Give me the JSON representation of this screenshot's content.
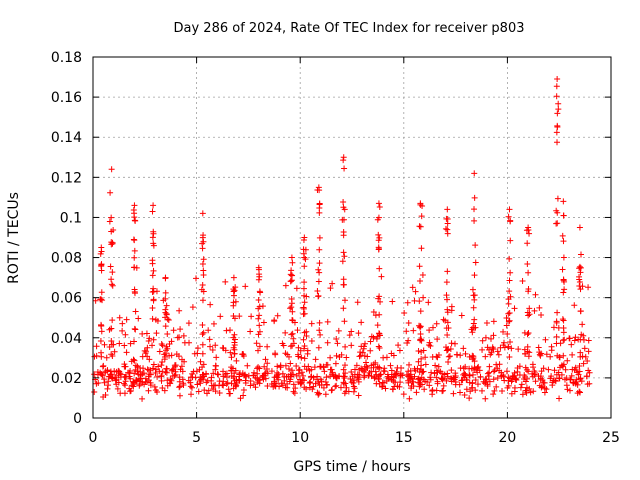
{
  "chart_data": {
    "type": "scatter",
    "title": "Day 286 of 2024, Rate Of TEC Index for receiver p803",
    "xlabel": "GPS time / hours",
    "ylabel": "ROTI / TECUs",
    "xlim": [
      0,
      25
    ],
    "ylim": [
      0,
      0.18
    ],
    "xticks": [
      "0",
      "5",
      "10",
      "15",
      "20",
      "25"
    ],
    "yticks": [
      "0",
      "0.02",
      "0.04",
      "0.06",
      "0.08",
      "0.1",
      "0.12",
      "0.14",
      "0.16",
      "0.18"
    ],
    "grid": true,
    "marker": "+",
    "color": "#ff0000",
    "series": [
      {
        "name": "ROTI",
        "x_range": [
          0,
          24
        ],
        "baseline_band": [
          0.01,
          0.03
        ],
        "spikes": [
          {
            "x": 0.4,
            "y": 0.085
          },
          {
            "x": 0.9,
            "y": 0.124
          },
          {
            "x": 2.0,
            "y": 0.106
          },
          {
            "x": 2.9,
            "y": 0.106
          },
          {
            "x": 3.5,
            "y": 0.07
          },
          {
            "x": 5.3,
            "y": 0.102
          },
          {
            "x": 6.8,
            "y": 0.07
          },
          {
            "x": 8.0,
            "y": 0.075
          },
          {
            "x": 9.6,
            "y": 0.08
          },
          {
            "x": 10.2,
            "y": 0.09
          },
          {
            "x": 10.9,
            "y": 0.115
          },
          {
            "x": 12.1,
            "y": 0.13
          },
          {
            "x": 13.8,
            "y": 0.107
          },
          {
            "x": 15.8,
            "y": 0.107
          },
          {
            "x": 17.1,
            "y": 0.104
          },
          {
            "x": 18.4,
            "y": 0.122
          },
          {
            "x": 20.1,
            "y": 0.104
          },
          {
            "x": 21.0,
            "y": 0.095
          },
          {
            "x": 22.4,
            "y": 0.169
          },
          {
            "x": 22.7,
            "y": 0.108
          },
          {
            "x": 23.5,
            "y": 0.095
          }
        ]
      }
    ]
  }
}
